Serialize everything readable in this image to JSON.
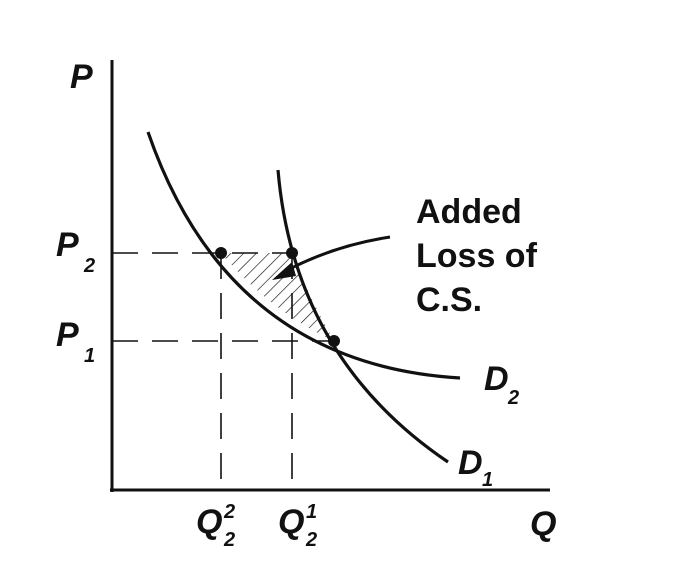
{
  "axes": {
    "y_label": "P",
    "x_label": "Q"
  },
  "price_levels": [
    {
      "main": "P",
      "sub": "2"
    },
    {
      "main": "P",
      "sub": "1"
    }
  ],
  "quantity_levels": [
    {
      "main": "Q",
      "sup": "2",
      "sub": "2"
    },
    {
      "main": "Q",
      "sup": "1",
      "sub": "2"
    }
  ],
  "curves": [
    {
      "main": "D",
      "sub": "2"
    },
    {
      "main": "D",
      "sub": "1"
    }
  ],
  "annotation": {
    "lines": [
      "Added",
      "Loss of",
      "C.S."
    ]
  },
  "colors": {
    "ink": "#111111",
    "background": "#ffffff"
  }
}
